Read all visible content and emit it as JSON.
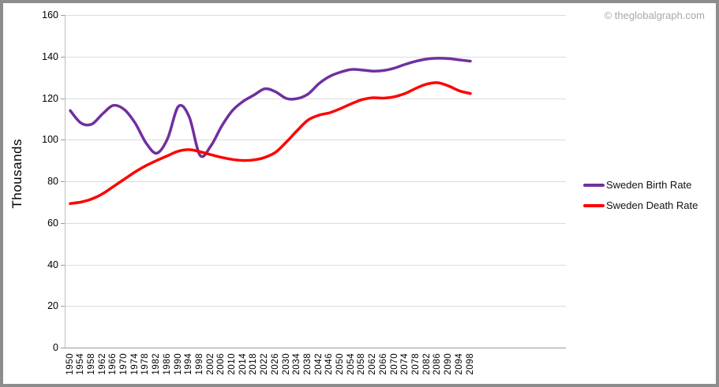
{
  "watermark": "© theglobalgraph.com",
  "chart_data": {
    "type": "line",
    "title": "",
    "ylabel": "Thousands",
    "xlabel": "",
    "ylim": [
      0,
      160
    ],
    "yticks": [
      0,
      20,
      40,
      60,
      80,
      100,
      120,
      140,
      160
    ],
    "grid": true,
    "legend_position": "right",
    "x": [
      1950,
      1954,
      1958,
      1962,
      1966,
      1970,
      1974,
      1978,
      1982,
      1986,
      1990,
      1994,
      1998,
      2002,
      2006,
      2010,
      2014,
      2018,
      2022,
      2026,
      2030,
      2034,
      2038,
      2042,
      2046,
      2050,
      2054,
      2058,
      2062,
      2066,
      2070,
      2074,
      2078,
      2082,
      2086,
      2090,
      2094,
      2098
    ],
    "series": [
      {
        "name": "Sweden Birth Rate",
        "color": "#7030A0",
        "values": [
          114,
          108,
          107.5,
          112.5,
          116.5,
          114.5,
          108,
          98.5,
          93.5,
          100.5,
          116,
          111,
          92.5,
          97,
          106.5,
          114,
          118.5,
          121.5,
          124.5,
          123,
          119.8,
          119.8,
          122,
          127,
          130.5,
          132.5,
          133.8,
          133.5,
          133,
          133.3,
          134.5,
          136.3,
          137.8,
          138.8,
          139.2,
          139,
          138.4,
          137.8
        ]
      },
      {
        "name": "Sweden Death Rate",
        "color": "#FE0000",
        "values": [
          69.3,
          70,
          71.5,
          74,
          77.5,
          81,
          84.5,
          87.5,
          90,
          92.3,
          94.5,
          95.2,
          94.2,
          92.8,
          91.5,
          90.5,
          90,
          90.3,
          91.5,
          94,
          99,
          104.5,
          109.5,
          111.8,
          113,
          115,
          117.3,
          119.3,
          120.2,
          120,
          120.7,
          122.3,
          124.8,
          126.8,
          127.4,
          125.8,
          123.5,
          122.2
        ]
      }
    ]
  }
}
